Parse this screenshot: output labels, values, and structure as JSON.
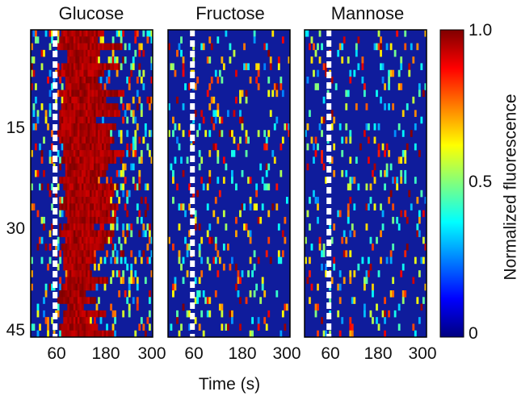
{
  "chart_data": {
    "type": "heatmap",
    "panels": [
      {
        "title": "Glucose",
        "stimulus_time": 60,
        "response": "strong sustained response in most cells"
      },
      {
        "title": "Fructose",
        "stimulus_time": 60,
        "response": "sparse transient activity"
      },
      {
        "title": "Mannose",
        "stimulus_time": 60,
        "response": "sparse transient activity"
      }
    ],
    "x": {
      "label": "Time (s)",
      "ticks": [
        60,
        180,
        300
      ],
      "tick_labels": [
        "60",
        "180",
        "300"
      ],
      "range": [
        0,
        300
      ]
    },
    "y": {
      "ticks": [
        15,
        30,
        45
      ],
      "tick_labels": [
        "15",
        "30",
        "45"
      ],
      "range": [
        1,
        46
      ],
      "n_cells": 46
    },
    "colorbar": {
      "label": "Normalized fluorescence",
      "range": [
        0,
        1.0
      ],
      "ticks": [
        0,
        0.5,
        1.0
      ],
      "tick_labels": [
        "0",
        "0.5",
        "1.0"
      ],
      "colormap": [
        "#00007f",
        "#0000ff",
        "#007fff",
        "#00ffff",
        "#7fff7f",
        "#ffff00",
        "#ff7f00",
        "#ff0000",
        "#7f0000"
      ]
    },
    "background_color": "#0f1c9c",
    "marker_color": "#ffffff"
  }
}
